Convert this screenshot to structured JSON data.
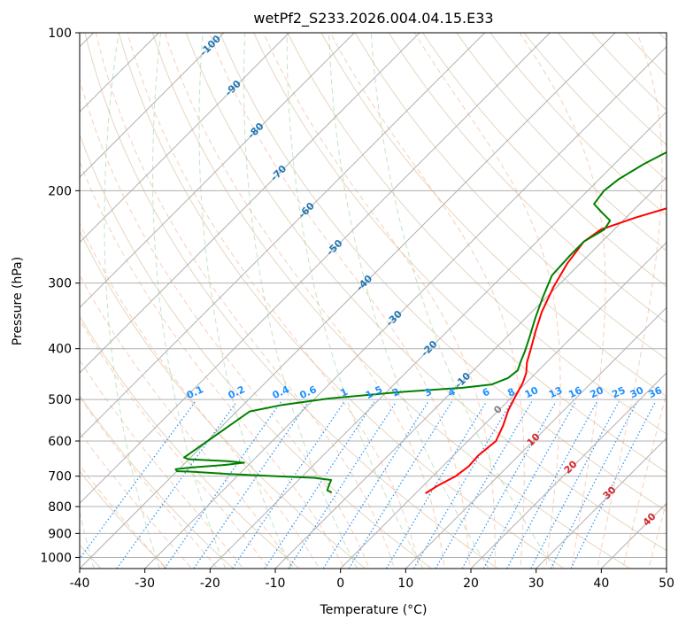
{
  "chart_data": {
    "type": "line",
    "title": "wetPf2_S233.2026.004.04.15.E33",
    "xlabel": "Temperature (°C)",
    "ylabel": "Pressure (hPa)",
    "xlim": [
      -40,
      50
    ],
    "ylim": [
      1050,
      100
    ],
    "x_ticks": [
      "-40",
      "-30",
      "-20",
      "-10",
      "0",
      "10",
      "20",
      "30",
      "40",
      "50"
    ],
    "y_ticks": [
      "100",
      "200",
      "300",
      "400",
      "500",
      "600",
      "700",
      "800",
      "900",
      "1000"
    ],
    "series": [
      {
        "name": "Temperature",
        "color": "#ff0000",
        "points": [
          [
            1.5,
            755
          ],
          [
            2.2,
            730
          ],
          [
            3.5,
            700
          ],
          [
            4.0,
            670
          ],
          [
            3.8,
            640
          ],
          [
            4.3,
            600
          ],
          [
            3.0,
            560
          ],
          [
            1.5,
            525
          ],
          [
            0.5,
            495
          ],
          [
            -0.5,
            465
          ],
          [
            -1.5,
            445
          ],
          [
            -3.0,
            425
          ],
          [
            -4.5,
            400
          ],
          [
            -6.5,
            370
          ],
          [
            -8.5,
            340
          ],
          [
            -10.5,
            305
          ],
          [
            -12.0,
            275
          ],
          [
            -12.8,
            250
          ],
          [
            -12.0,
            237
          ],
          [
            -8.5,
            225
          ],
          [
            -4.0,
            213
          ],
          [
            1.0,
            202
          ],
          [
            5.0,
            192
          ],
          [
            7.0,
            183
          ],
          [
            8.5,
            172
          ],
          [
            10.5,
            160
          ],
          [
            13.0,
            150
          ],
          [
            16.0,
            140
          ],
          [
            19.0,
            132
          ],
          [
            21.5,
            124
          ],
          [
            24.0,
            116
          ],
          [
            26.0,
            110
          ],
          [
            27.5,
            104
          ],
          [
            28.5,
            100
          ]
        ]
      },
      {
        "name": "Dewpoint",
        "color": "#008000",
        "points": [
          [
            -13.0,
            752
          ],
          [
            -14.0,
            745
          ],
          [
            -14.5,
            730
          ],
          [
            -15.0,
            712
          ],
          [
            -18.0,
            705
          ],
          [
            -24.0,
            700
          ],
          [
            -32.0,
            693
          ],
          [
            -38.0,
            686
          ],
          [
            -40.0,
            685
          ],
          [
            -40.5,
            679
          ],
          [
            -38.0,
            673
          ],
          [
            -34.0,
            667
          ],
          [
            -31.0,
            660
          ],
          [
            -34.0,
            655
          ],
          [
            -40.0,
            650
          ],
          [
            -41.0,
            645
          ],
          [
            -38.0,
            527
          ],
          [
            -34.0,
            512
          ],
          [
            -28.0,
            498
          ],
          [
            -18.0,
            484
          ],
          [
            -9.0,
            475
          ],
          [
            -5.0,
            468
          ],
          [
            -3.5,
            455
          ],
          [
            -3.2,
            440
          ],
          [
            -4.0,
            425
          ],
          [
            -5.0,
            405
          ],
          [
            -6.5,
            380
          ],
          [
            -8.5,
            350
          ],
          [
            -10.5,
            320
          ],
          [
            -12.5,
            290
          ],
          [
            -12.8,
            265
          ],
          [
            -12.8,
            250
          ],
          [
            -11.5,
            237
          ],
          [
            -12.0,
            228
          ],
          [
            -14.5,
            220
          ],
          [
            -17.0,
            212
          ],
          [
            -17.5,
            200
          ],
          [
            -17.0,
            190
          ],
          [
            -15.5,
            178
          ],
          [
            -14.0,
            170
          ],
          [
            -12.0,
            160
          ],
          [
            -10.0,
            150
          ],
          [
            -8.0,
            142
          ],
          [
            -6.5,
            135
          ],
          [
            -5.5,
            128
          ],
          [
            -4.5,
            122
          ],
          [
            -3.0,
            115
          ],
          [
            -1.0,
            108
          ],
          [
            0.5,
            103
          ],
          [
            1.5,
            100
          ]
        ]
      }
    ],
    "isotherm_labels": [
      "-100",
      "-90",
      "-80",
      "-70",
      "-60",
      "-50",
      "-40",
      "-30",
      "-20",
      "-10"
    ],
    "mixing_ratio_labels": [
      "0.1",
      "0.2",
      "0.4",
      "0.6",
      "1",
      "1.5",
      "2",
      "3",
      "4",
      "6",
      "8",
      "10",
      "13",
      "16",
      "20",
      "25",
      "30",
      "36"
    ],
    "moist_adiabat_labels": [
      "0",
      "10",
      "20",
      "30",
      "40"
    ],
    "grid": true,
    "colors": {
      "isotherm": "#b0b0b0",
      "isotherm_label": "#1f77b4",
      "dry_adiabat": "#d2b48c",
      "moist_adiabat": "#f4a582",
      "mixing_ratio": "#1e90ff",
      "mixing_label": "#1e90ff",
      "moist_label": "#d62728",
      "zero_label": "#808080",
      "green_dashed": "#8fd08f"
    }
  }
}
